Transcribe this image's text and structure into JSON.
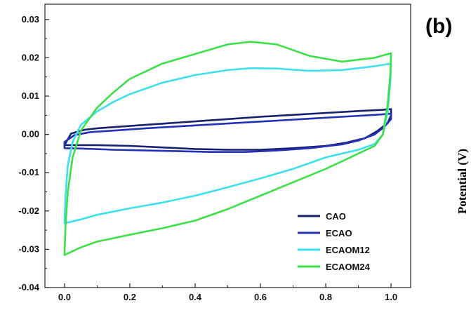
{
  "panel_label": "(b)",
  "side_label": "Potential (V)",
  "chart_data": {
    "type": "line",
    "title": "",
    "xlabel": "",
    "ylabel": "",
    "xlim": [
      -0.06,
      1.06
    ],
    "ylim": [
      -0.04,
      0.034
    ],
    "x_ticks": [
      0.0,
      0.2,
      0.4,
      0.6,
      0.8,
      1.0
    ],
    "x_tick_labels": [
      "0.0",
      "0.2",
      "0.4",
      "0.6",
      "0.8",
      "1.0"
    ],
    "y_ticks": [
      -0.04,
      -0.03,
      -0.02,
      -0.01,
      0.0,
      0.01,
      0.02,
      0.03
    ],
    "y_tick_labels": [
      "-0.04",
      "-0.03",
      "-0.02",
      "-0.01",
      "0.00",
      "0.01",
      "0.02",
      "0.03"
    ],
    "grid": false,
    "legend_position": "lower-right",
    "series": [
      {
        "name": "CAO",
        "color": "#16206e",
        "closed": true,
        "points": [
          [
            0.0,
            -0.0028
          ],
          [
            0.02,
            0.0002
          ],
          [
            0.06,
            0.0012
          ],
          [
            0.1,
            0.0016
          ],
          [
            0.2,
            0.0022
          ],
          [
            0.3,
            0.0028
          ],
          [
            0.4,
            0.0034
          ],
          [
            0.5,
            0.004
          ],
          [
            0.6,
            0.0046
          ],
          [
            0.7,
            0.0051
          ],
          [
            0.8,
            0.0056
          ],
          [
            0.9,
            0.0061
          ],
          [
            0.97,
            0.0064
          ],
          [
            1.0,
            0.0066
          ],
          [
            1.0,
            0.005
          ],
          [
            0.99,
            0.003
          ],
          [
            0.96,
            0.001
          ],
          [
            0.92,
            -0.001
          ],
          [
            0.86,
            -0.0022
          ],
          [
            0.8,
            -0.003
          ],
          [
            0.7,
            -0.0036
          ],
          [
            0.6,
            -0.004
          ],
          [
            0.5,
            -0.004
          ],
          [
            0.4,
            -0.0038
          ],
          [
            0.3,
            -0.0034
          ],
          [
            0.2,
            -0.003
          ],
          [
            0.1,
            -0.0028
          ],
          [
            0.0,
            -0.0028
          ]
        ]
      },
      {
        "name": "ECAO",
        "color": "#2330b8",
        "closed": true,
        "points": [
          [
            0.0,
            -0.0036
          ],
          [
            0.0,
            -0.002
          ],
          [
            0.03,
            -0.0002
          ],
          [
            0.08,
            0.0006
          ],
          [
            0.15,
            0.001
          ],
          [
            0.25,
            0.0016
          ],
          [
            0.35,
            0.0021
          ],
          [
            0.45,
            0.0026
          ],
          [
            0.55,
            0.0031
          ],
          [
            0.65,
            0.0036
          ],
          [
            0.75,
            0.0041
          ],
          [
            0.85,
            0.0046
          ],
          [
            0.95,
            0.0051
          ],
          [
            1.0,
            0.0054
          ],
          [
            1.0,
            0.004
          ],
          [
            0.98,
            0.002
          ],
          [
            0.95,
            0.0
          ],
          [
            0.9,
            -0.0016
          ],
          [
            0.85,
            -0.0026
          ],
          [
            0.75,
            -0.0036
          ],
          [
            0.65,
            -0.0042
          ],
          [
            0.55,
            -0.0046
          ],
          [
            0.45,
            -0.0046
          ],
          [
            0.35,
            -0.0044
          ],
          [
            0.25,
            -0.0042
          ],
          [
            0.15,
            -0.004
          ],
          [
            0.05,
            -0.0037
          ],
          [
            0.0,
            -0.0036
          ]
        ]
      },
      {
        "name": "ECAOM12",
        "color": "#3ee0ee",
        "closed": true,
        "points": [
          [
            0.0,
            -0.0232
          ],
          [
            0.003,
            -0.016
          ],
          [
            0.01,
            -0.008
          ],
          [
            0.025,
            -0.002
          ],
          [
            0.05,
            0.0025
          ],
          [
            0.1,
            0.006
          ],
          [
            0.15,
            0.0085
          ],
          [
            0.2,
            0.0105
          ],
          [
            0.3,
            0.0135
          ],
          [
            0.4,
            0.0155
          ],
          [
            0.5,
            0.0168
          ],
          [
            0.57,
            0.0173
          ],
          [
            0.65,
            0.0172
          ],
          [
            0.75,
            0.0166
          ],
          [
            0.85,
            0.0168
          ],
          [
            0.95,
            0.0178
          ],
          [
            1.0,
            0.0185
          ],
          [
            0.998,
            0.014
          ],
          [
            0.99,
            0.006
          ],
          [
            0.975,
            0.0
          ],
          [
            0.95,
            -0.0025
          ],
          [
            0.9,
            -0.004
          ],
          [
            0.8,
            -0.006
          ],
          [
            0.7,
            -0.009
          ],
          [
            0.6,
            -0.0115
          ],
          [
            0.5,
            -0.0138
          ],
          [
            0.4,
            -0.016
          ],
          [
            0.3,
            -0.0178
          ],
          [
            0.2,
            -0.0193
          ],
          [
            0.1,
            -0.021
          ],
          [
            0.05,
            -0.0222
          ],
          [
            0.0,
            -0.0232
          ]
        ]
      },
      {
        "name": "ECAOM24",
        "color": "#3ee04a",
        "closed": true,
        "points": [
          [
            0.0,
            -0.0315
          ],
          [
            0.003,
            -0.024
          ],
          [
            0.01,
            -0.015
          ],
          [
            0.025,
            -0.006
          ],
          [
            0.05,
            0.001
          ],
          [
            0.1,
            0.007
          ],
          [
            0.15,
            0.011
          ],
          [
            0.2,
            0.0145
          ],
          [
            0.3,
            0.0185
          ],
          [
            0.4,
            0.021
          ],
          [
            0.5,
            0.0235
          ],
          [
            0.57,
            0.0242
          ],
          [
            0.65,
            0.0235
          ],
          [
            0.75,
            0.0205
          ],
          [
            0.85,
            0.019
          ],
          [
            0.95,
            0.02
          ],
          [
            1.0,
            0.0212
          ],
          [
            0.998,
            0.016
          ],
          [
            0.99,
            0.008
          ],
          [
            0.975,
            0.0
          ],
          [
            0.95,
            -0.003
          ],
          [
            0.9,
            -0.005
          ],
          [
            0.8,
            -0.009
          ],
          [
            0.7,
            -0.0125
          ],
          [
            0.6,
            -0.016
          ],
          [
            0.5,
            -0.0195
          ],
          [
            0.4,
            -0.0225
          ],
          [
            0.3,
            -0.0245
          ],
          [
            0.2,
            -0.0262
          ],
          [
            0.1,
            -0.028
          ],
          [
            0.05,
            -0.0295
          ],
          [
            0.0,
            -0.0315
          ]
        ]
      }
    ]
  }
}
